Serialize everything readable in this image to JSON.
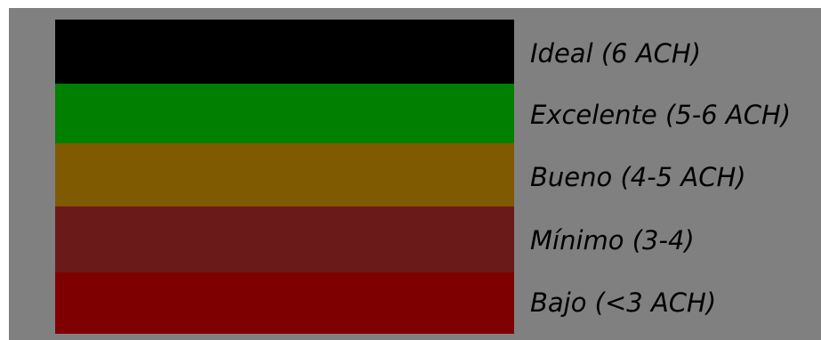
{
  "legend": {
    "items": [
      {
        "label": "Ideal (6 ACH)",
        "color": "#000000"
      },
      {
        "label": "Excelente (5-6 ACH)",
        "color": "#007f00"
      },
      {
        "label": "Bueno (4-5 ACH)",
        "color": "#7f5a00"
      },
      {
        "label": "Mínimo (3-4)",
        "color": "#6b1a1a"
      },
      {
        "label": "Bajo (<3 ACH)",
        "color": "#7f0000"
      }
    ]
  }
}
